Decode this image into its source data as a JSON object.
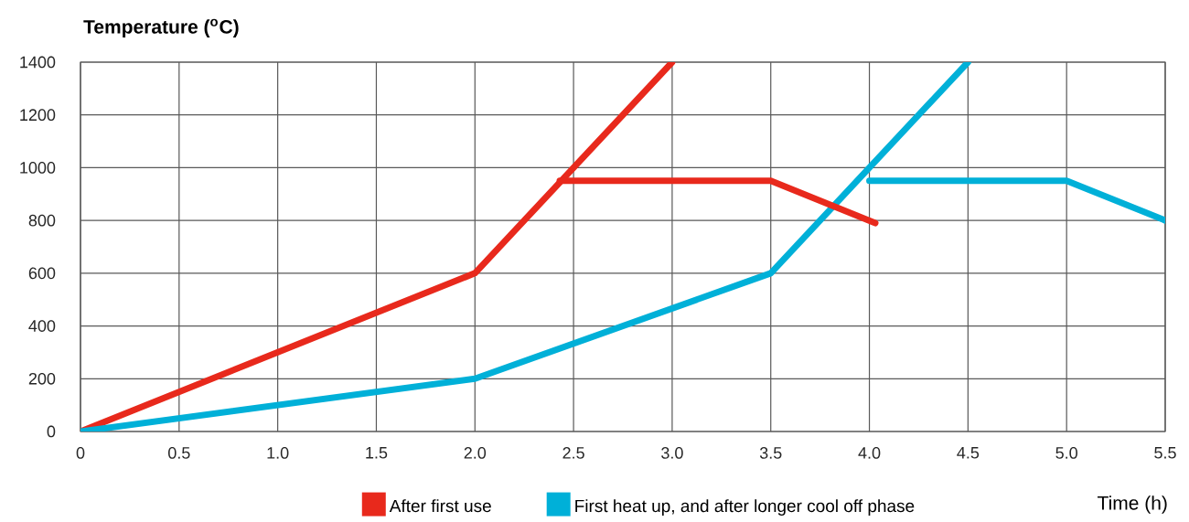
{
  "chart_data": {
    "type": "line",
    "xlabel": "Time (h)",
    "ylabel": "Temperature ($^{o}$C)",
    "xlim": [
      0,
      5.5
    ],
    "ylim": [
      0,
      1400
    ],
    "xticks": [
      0,
      0.5,
      {
        "value": 1,
        "label": "1.0"
      },
      1.5,
      {
        "value": 2,
        "label": "2.0"
      },
      2.5,
      {
        "value": 3,
        "label": "3.0"
      },
      3.5,
      {
        "value": 4,
        "label": "4.0"
      },
      4.5,
      {
        "value": 5,
        "label": "5.0"
      },
      5.5
    ],
    "yticks": [
      0,
      200,
      400,
      600,
      800,
      1000,
      1200,
      1400
    ],
    "grid": true,
    "legend": "bottom",
    "marker": "none",
    "line_style": "solid",
    "series": [
      {
        "name": "After first use",
        "color": "#e8291c",
        "x": [
          0,
          2,
          3
        ],
        "values": [
          0,
          600,
          1400
        ]
      },
      {
        "name": "First heat up, and after longer cool off phase",
        "color": "#00b0d8",
        "x": [
          0,
          2,
          3.5,
          4.5
        ],
        "values": [
          0,
          200,
          600,
          1400
        ]
      },
      {
        "color": "#e8291c",
        "x": [
          2.43,
          3.5,
          4.03
        ],
        "values": [
          950,
          950,
          790
        ]
      },
      {
        "color": "#00b0d8",
        "x": [
          4.0,
          5.0,
          5.5
        ],
        "values": [
          950,
          950,
          800
        ]
      }
    ]
  }
}
